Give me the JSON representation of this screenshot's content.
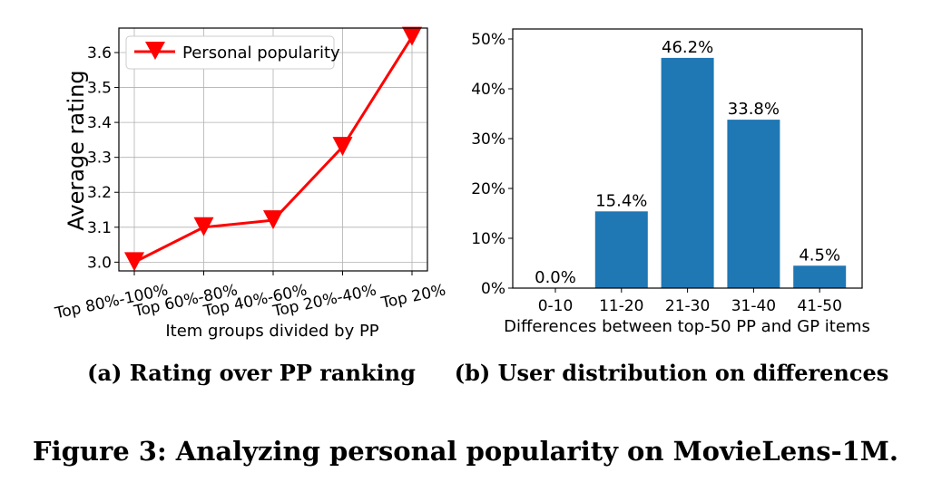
{
  "chart_data": [
    {
      "type": "line",
      "categories": [
        "Top 80%-100%",
        "Top 60%-80%",
        "Top 40%-60%",
        "Top 20%-40%",
        "Top 20%"
      ],
      "series": [
        {
          "name": "Personal popularity",
          "values": [
            3.0,
            3.1,
            3.12,
            3.33,
            3.645
          ],
          "color": "#ff0000",
          "marker": "triangle-down"
        }
      ],
      "xlabel": "Item groups divided by PP",
      "ylabel": "Average rating",
      "ylim": [
        2.975,
        3.67
      ],
      "yticks": [
        "3.0",
        "3.1",
        "3.2",
        "3.3",
        "3.4",
        "3.5",
        "3.6"
      ],
      "grid": true,
      "legend": "top-left",
      "caption": "(a) Rating over PP ranking"
    },
    {
      "type": "bar",
      "categories": [
        "0-10",
        "11-20",
        "21-30",
        "31-40",
        "41-50"
      ],
      "values": [
        0.0,
        15.4,
        46.2,
        33.8,
        4.5
      ],
      "data_labels": [
        "0.0%",
        "15.4%",
        "46.2%",
        "33.8%",
        "4.5%"
      ],
      "color": "#1f77b4",
      "xlabel": "Differences between top-50 PP and GP items",
      "ylabel": "",
      "ylim": [
        0,
        52
      ],
      "yticks": [
        "0%",
        "10%",
        "20%",
        "30%",
        "40%",
        "50%"
      ],
      "grid": false,
      "caption": "(b) User distribution on differences"
    }
  ],
  "figure_caption": "Figure 3: Analyzing personal popularity on MovieLens-1M."
}
